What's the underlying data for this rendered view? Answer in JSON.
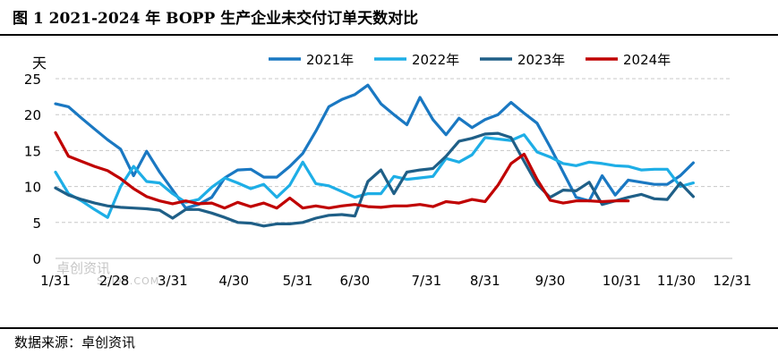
{
  "title": "图 1 2021-2024 年 BOPP 生产企业未交付订单天数对比",
  "source": "数据来源：卓创资讯",
  "watermark": {
    "main": "卓创资讯",
    "sub": "SCI99.COM"
  },
  "chart_data": {
    "type": "line",
    "title": "图 1 2021-2024 年 BOPP 生产企业未交付订单天数对比",
    "ylabel": "天",
    "xlabel": "",
    "ylim": [
      0,
      25
    ],
    "yticks": [
      0,
      5,
      10,
      15,
      20,
      25
    ],
    "x_range": [
      0,
      52
    ],
    "x_tick_labels": [
      "1/31",
      "2/28",
      "3/31",
      "4/30",
      "5/31",
      "6/30",
      "7/31",
      "8/31",
      "9/30",
      "10/31",
      "11/30",
      "12/31"
    ],
    "x_tick_positions": [
      0,
      4.5,
      9,
      13.7,
      18.6,
      23,
      28.5,
      33,
      38,
      43.5,
      47.7,
      52
    ],
    "grid": "horizontal dashed",
    "legend_position": "top",
    "colors": {
      "2021年": "#1a78c2",
      "2022年": "#1eaee6",
      "2023年": "#1f5f87",
      "2024年": "#c00000"
    },
    "series": [
      {
        "name": "2021年",
        "x": [
          0,
          1,
          2,
          3,
          4,
          5,
          6,
          7,
          8,
          9,
          10,
          11,
          12,
          13,
          14,
          15,
          16,
          17,
          18,
          19,
          20,
          21,
          22,
          23,
          24,
          25,
          26,
          27,
          28,
          29,
          30,
          31,
          32,
          33,
          34,
          35,
          36,
          37,
          38,
          39,
          40,
          41,
          42,
          43,
          44,
          45,
          46,
          47,
          48,
          49,
          50,
          51,
          52
        ],
        "values": [
          21.5,
          21.1,
          19.5,
          18,
          16.5,
          15.2,
          11.5,
          14.9,
          12,
          9.5,
          7,
          7.5,
          8.5,
          11.2,
          12.3,
          12.4,
          11.3,
          11.3,
          12.8,
          14.6,
          17.7,
          21.1,
          22.1,
          22.8,
          24.1,
          21.5,
          20,
          18.6,
          22.4,
          19.3,
          17.2,
          19.5,
          18.2,
          19.3,
          20,
          21.7,
          20.2,
          18.8,
          15.5,
          12,
          8.5,
          8,
          11.5,
          8.8,
          10.9,
          10.6,
          10.3,
          10.3,
          11.5,
          13.3,
          null,
          null,
          null
        ]
      },
      {
        "name": "2022年",
        "x": [
          0,
          1,
          2,
          3,
          4,
          5,
          6,
          7,
          8,
          9,
          10,
          11,
          12,
          13,
          14,
          15,
          16,
          17,
          18,
          19,
          20,
          21,
          22,
          23,
          24,
          25,
          26,
          27,
          28,
          29,
          30,
          31,
          32,
          33,
          34,
          35,
          36,
          37,
          38,
          39,
          40,
          41,
          42,
          43,
          44,
          45,
          46,
          47,
          48,
          49,
          50,
          51,
          52
        ],
        "values": [
          12,
          9,
          8,
          6.8,
          5.7,
          10,
          12.8,
          10.7,
          10.5,
          9,
          7.8,
          8.2,
          9.9,
          11.2,
          10.5,
          9.7,
          10.3,
          8.5,
          10.2,
          13.4,
          10.4,
          10.1,
          9.3,
          8.5,
          9,
          9,
          11.4,
          11,
          11.2,
          11.4,
          13.9,
          13.4,
          14.4,
          16.8,
          16.6,
          16.4,
          17.2,
          14.8,
          14.1,
          13.2,
          12.9,
          13.4,
          13.2,
          12.9,
          12.8,
          12.3,
          12.4,
          12.4,
          10,
          10.5,
          null,
          null,
          null
        ]
      },
      {
        "name": "2023年",
        "x": [
          0,
          1,
          2,
          3,
          4,
          5,
          6,
          7,
          8,
          9,
          10,
          11,
          12,
          13,
          14,
          15,
          16,
          17,
          18,
          19,
          20,
          21,
          22,
          23,
          24,
          25,
          26,
          27,
          28,
          29,
          30,
          31,
          32,
          33,
          34,
          35,
          36,
          37,
          38,
          39,
          40,
          41,
          42,
          43,
          44,
          45,
          46,
          47,
          48,
          49,
          50,
          51,
          52
        ],
        "values": [
          9.8,
          8.8,
          8.2,
          7.7,
          7.3,
          7.1,
          7,
          6.9,
          6.7,
          5.6,
          6.8,
          6.8,
          6.3,
          5.7,
          5,
          4.9,
          4.5,
          4.8,
          4.8,
          5,
          5.6,
          6,
          6.1,
          5.9,
          10.7,
          12.3,
          9,
          12,
          12.3,
          12.5,
          14.2,
          16.3,
          16.7,
          17.3,
          17.4,
          16.8,
          13.5,
          10.3,
          8.5,
          9.5,
          9.4,
          10.6,
          7.5,
          8,
          8.5,
          8.9,
          8.3,
          8.2,
          10.5,
          8.6,
          null,
          null,
          null
        ]
      },
      {
        "name": "2024年",
        "x": [
          0,
          1,
          2,
          3,
          4,
          5,
          6,
          7,
          8,
          9,
          10,
          11,
          12,
          13,
          14,
          15,
          16,
          17,
          18,
          19,
          20,
          21,
          22,
          23,
          24,
          25,
          26,
          27,
          28,
          29,
          30,
          31,
          32,
          33,
          34,
          35,
          36,
          37,
          38,
          39,
          40,
          41,
          42,
          43,
          44,
          45,
          46,
          47,
          48,
          49,
          50,
          51,
          52
        ],
        "values": [
          17.5,
          14.2,
          13.5,
          12.8,
          12.2,
          11.1,
          9.7,
          8.6,
          8,
          7.6,
          8,
          7.6,
          7.7,
          7,
          7.8,
          7.2,
          7.7,
          7,
          8.4,
          7,
          7.3,
          7,
          7.3,
          7.5,
          7.2,
          7.1,
          7.3,
          7.3,
          7.5,
          7.2,
          7.9,
          7.7,
          8.2,
          7.9,
          10.2,
          13.2,
          14.5,
          11,
          8.1,
          7.7,
          8,
          8,
          7.9,
          8,
          8,
          null,
          null,
          null,
          null,
          null,
          null,
          null,
          null
        ]
      }
    ]
  }
}
